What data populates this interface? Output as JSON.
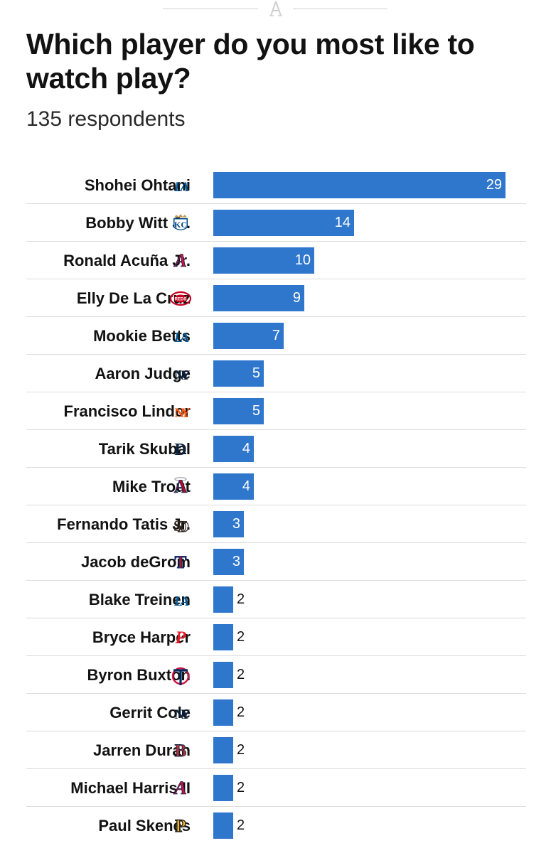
{
  "header": {
    "logo_icon": "the-athletic-logo-icon"
  },
  "title": "Which player do you most like to watch play?",
  "subtitle": "135 respondents",
  "chart_data": {
    "type": "bar",
    "orientation": "horizontal",
    "title": "Which player do you most like to watch play?",
    "subtitle": "135 respondents",
    "bar_color": "#2f76cd",
    "xlim": [
      0,
      29
    ],
    "categories": [
      "Shohei Ohtani",
      "Bobby Witt Jr.",
      "Ronald Acuña Jr.",
      "Elly De La Cruz",
      "Mookie Betts",
      "Aaron Judge",
      "Francisco Lindor",
      "Tarik Skubal",
      "Mike Trout",
      "Fernando Tatis Jr.",
      "Jacob deGrom",
      "Blake Treinen",
      "Bryce Harper",
      "Byron Buxton",
      "Gerrit Cole",
      "Jarren Duran",
      "Michael Harris II",
      "Paul Skenes"
    ],
    "values": [
      29,
      14,
      10,
      9,
      7,
      5,
      5,
      4,
      4,
      3,
      3,
      2,
      2,
      2,
      2,
      2,
      2,
      2
    ],
    "team_icons": [
      "dodgers-logo-icon",
      "royals-logo-icon",
      "braves-logo-icon",
      "reds-logo-icon",
      "dodgers-logo-icon",
      "yankees-logo-icon",
      "mets-logo-icon",
      "tigers-logo-icon",
      "angels-logo-icon",
      "padres-logo-icon",
      "rangers-logo-icon",
      "dodgers-logo-icon",
      "phillies-logo-icon",
      "twins-logo-icon",
      "yankees-logo-icon",
      "red-sox-logo-icon",
      "braves-logo-icon",
      "pirates-logo-icon"
    ]
  }
}
